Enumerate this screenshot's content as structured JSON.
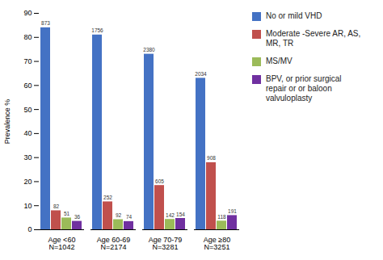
{
  "chart_data": {
    "type": "bar",
    "categories": [
      "Age <60\nN=1042",
      "Age 60-69\nN=2174",
      "Age 70-79\nN=3281",
      "Age ≥80\nN=3251"
    ],
    "series": [
      {
        "name": "No or mild VHD",
        "color": "#4472C4",
        "values": [
          84,
          81,
          73,
          63
        ],
        "annotations": [
          "873",
          "1756",
          "2380",
          "2034"
        ]
      },
      {
        "name": "Moderate -Severe AR, AS,\nMR, TR",
        "color": "#C0504D",
        "values": [
          7.9,
          11.6,
          18.4,
          27.9
        ],
        "annotations": [
          "82",
          "252",
          "605",
          "908"
        ]
      },
      {
        "name": "MS/MV",
        "color": "#9BBB59",
        "values": [
          4.9,
          4.2,
          4.3,
          3.6
        ],
        "annotations": [
          "51",
          "92",
          "142",
          "118"
        ]
      },
      {
        "name": "BPV, or prior surgical\nrepair or or baloon\nvalvuloplasty",
        "color": "#7030A0",
        "values": [
          3.5,
          3.4,
          4.7,
          5.9
        ],
        "annotations": [
          "36",
          "74",
          "154",
          "191"
        ]
      }
    ],
    "ylabel": "Prevalence %",
    "ylim": [
      0,
      90
    ],
    "yticks": [
      0,
      10,
      20,
      30,
      40,
      50,
      60,
      70,
      80,
      90
    ],
    "grid": false,
    "legend": "right"
  }
}
